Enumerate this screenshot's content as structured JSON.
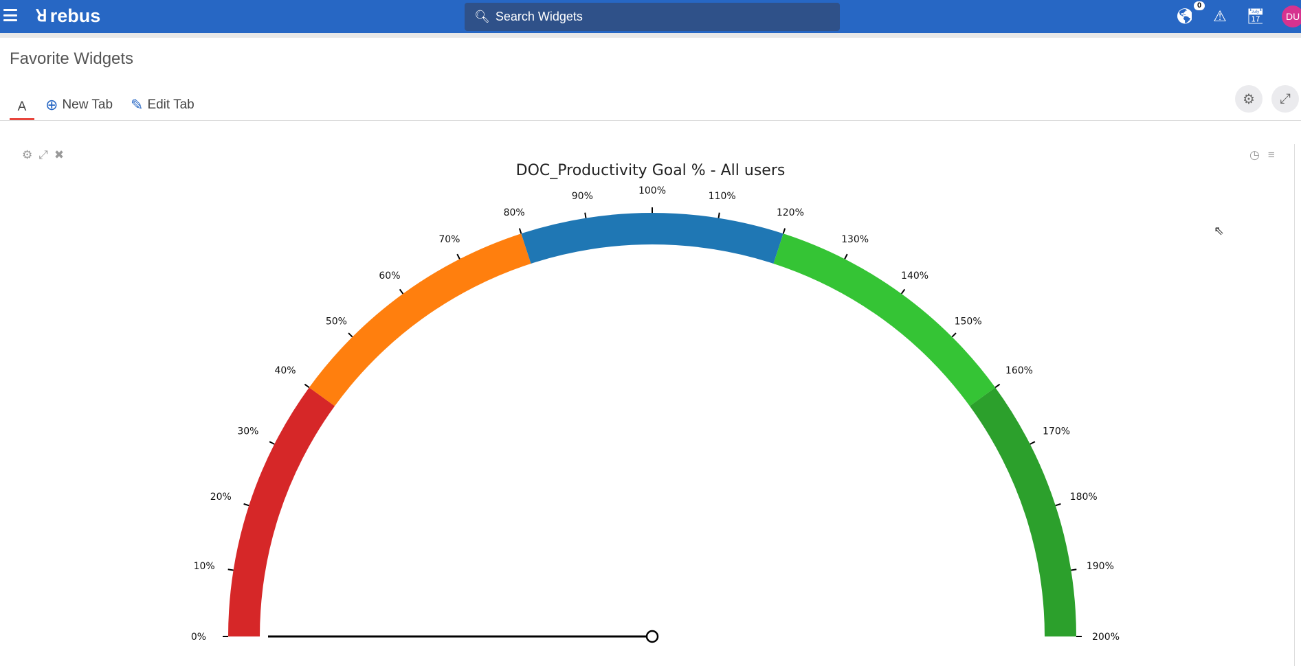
{
  "topbar": {
    "brand": "rebus",
    "search_placeholder": "Search Widgets",
    "notification_count": "0",
    "avatar_initials": "DU"
  },
  "page": {
    "title": "Favorite Widgets"
  },
  "tabs": {
    "items": [
      {
        "label": "A"
      }
    ],
    "new_tab": "New Tab",
    "edit_tab": "Edit Tab"
  },
  "widget": {
    "title": "DOC_Productivity Goal % - All users"
  },
  "chart_data": {
    "type": "gauge",
    "title": "DOC_Productivity Goal % - All users",
    "min": 0,
    "max": 200,
    "value": 0,
    "ticks": [
      0,
      10,
      20,
      30,
      40,
      50,
      60,
      70,
      80,
      90,
      100,
      110,
      120,
      130,
      140,
      150,
      160,
      170,
      180,
      190,
      200
    ],
    "tick_labels": [
      "0%",
      "10%",
      "20%",
      "30%",
      "40%",
      "50%",
      "60%",
      "70%",
      "80%",
      "90%",
      "100%",
      "110%",
      "120%",
      "130%",
      "140%",
      "150%",
      "160%",
      "170%",
      "180%",
      "190%",
      "200%"
    ],
    "bands": [
      {
        "from": 0,
        "to": 40,
        "color": "#d62728"
      },
      {
        "from": 40,
        "to": 80,
        "color": "#ff7f0e"
      },
      {
        "from": 80,
        "to": 120,
        "color": "#1f77b4"
      },
      {
        "from": 120,
        "to": 160,
        "color": "#35c435"
      },
      {
        "from": 160,
        "to": 200,
        "color": "#2ca02c"
      }
    ]
  }
}
